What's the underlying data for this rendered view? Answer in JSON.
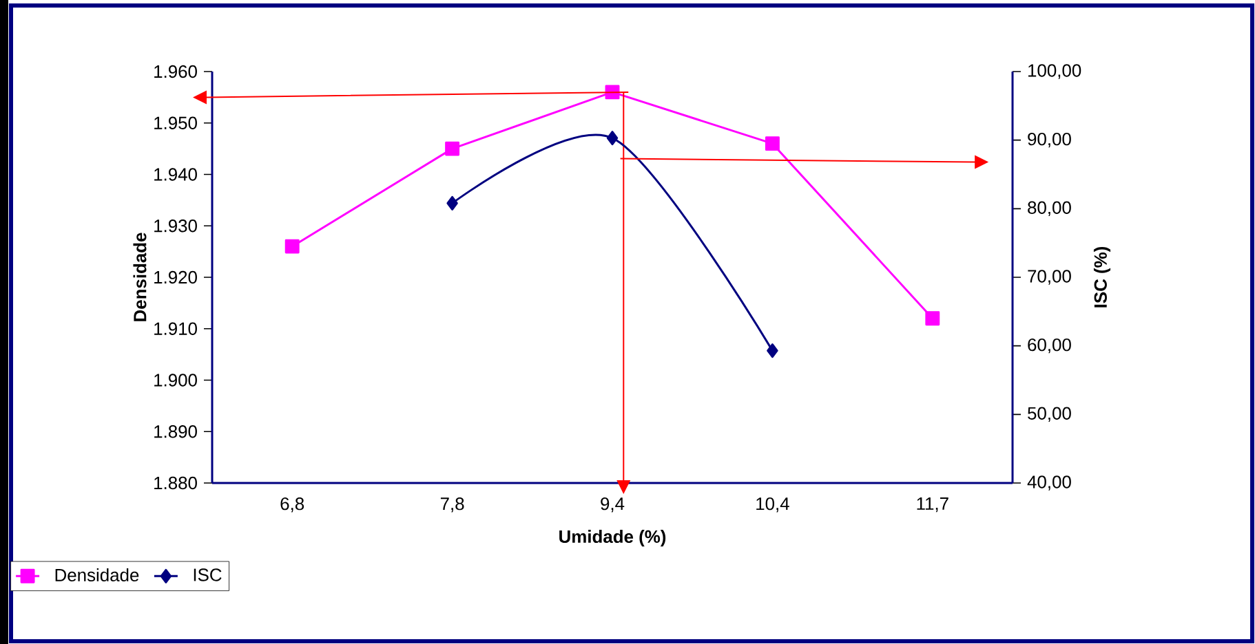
{
  "chart_data": {
    "type": "line",
    "xlabel": "Umidade (%)",
    "ylabel": "Densidade",
    "y2label": "ISC (%)",
    "categories": [
      "6,8",
      "7,8",
      "9,4",
      "10,4",
      "11,7"
    ],
    "series": [
      {
        "name": "Densidade",
        "color": "#ff00ff",
        "marker": "square",
        "values": [
          1926,
          1945,
          1956,
          1946,
          1912
        ]
      },
      {
        "name": "ISC",
        "color": "#000080",
        "marker": "diamond",
        "axis": "y2",
        "values": [
          null,
          80.8,
          90.3,
          59.3,
          null
        ]
      }
    ],
    "ylim": [
      1880,
      1960
    ],
    "yticks": [
      {
        "value": 1880,
        "label": "1.880"
      },
      {
        "value": 1890,
        "label": "1.890"
      },
      {
        "value": 1900,
        "label": "1.900"
      },
      {
        "value": 1910,
        "label": "1.910"
      },
      {
        "value": 1920,
        "label": "1.920"
      },
      {
        "value": 1930,
        "label": "1.930"
      },
      {
        "value": 1940,
        "label": "1.940"
      },
      {
        "value": 1950,
        "label": "1.950"
      },
      {
        "value": 1960,
        "label": "1.960"
      }
    ],
    "y2lim": [
      40,
      100
    ],
    "y2ticks": [
      {
        "value": 40,
        "label": "40,00"
      },
      {
        "value": 50,
        "label": "50,00"
      },
      {
        "value": 60,
        "label": "60,00"
      },
      {
        "value": 70,
        "label": "70,00"
      },
      {
        "value": 80,
        "label": "80,00"
      },
      {
        "value": 90,
        "label": "90,00"
      },
      {
        "value": 100,
        "label": "100,00"
      }
    ],
    "grid": false,
    "legend": "bottom left"
  }
}
